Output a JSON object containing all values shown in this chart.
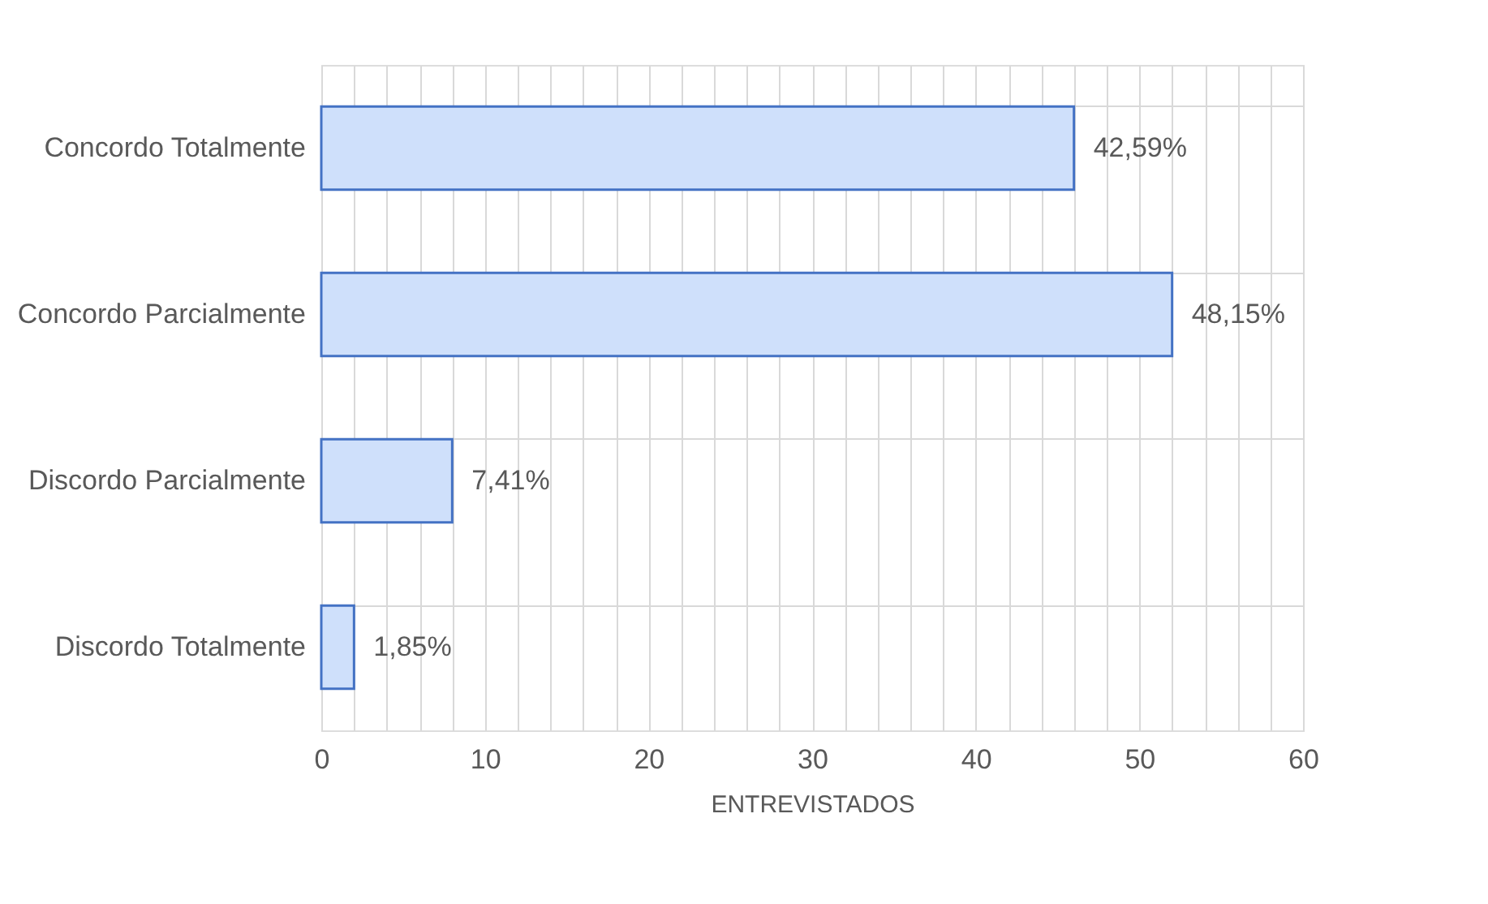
{
  "chart_data": {
    "type": "bar",
    "orientation": "horizontal",
    "xlabel": "ENTREVISTADOS",
    "categories": [
      "Concordo Totalmente",
      "Concordo Parcialmente",
      "Discordo Parcialmente",
      "Discordo Totalmente"
    ],
    "values": [
      46,
      52,
      8,
      2
    ],
    "annotations": [
      {
        "text": "42,59%",
        "x": 46,
        "y": "Concordo Totalmente"
      },
      {
        "text": "48,15%",
        "x": 52,
        "y": "Concordo Parcialmente"
      },
      {
        "text": "7,41%",
        "x": 8,
        "y": "Discordo Parcialmente"
      },
      {
        "text": "1,85%",
        "x": 2,
        "y": "Discordo Totalmente"
      }
    ],
    "color": "#cfe0fb",
    "xlim": [
      0,
      60
    ],
    "xticks": [
      0,
      {
        "value": 2,
        "label": null
      },
      {
        "value": 4,
        "label": null
      },
      {
        "value": 6,
        "label": null
      },
      {
        "value": 8,
        "label": null
      },
      10,
      {
        "value": 12,
        "label": null
      },
      {
        "value": 14,
        "label": null
      },
      {
        "value": 16,
        "label": null
      },
      {
        "value": 18,
        "label": null
      },
      20,
      {
        "value": 22,
        "label": null
      },
      {
        "value": 24,
        "label": null
      },
      {
        "value": 26,
        "label": null
      },
      {
        "value": 28,
        "label": null
      },
      30,
      {
        "value": 32,
        "label": null
      },
      {
        "value": 34,
        "label": null
      },
      {
        "value": 36,
        "label": null
      },
      {
        "value": 38,
        "label": null
      },
      40,
      {
        "value": 42,
        "label": null
      },
      {
        "value": 44,
        "label": null
      },
      {
        "value": 46,
        "label": null
      },
      {
        "value": 48,
        "label": null
      },
      50,
      {
        "value": 52,
        "label": null
      },
      {
        "value": 54,
        "label": null
      },
      {
        "value": 56,
        "label": null
      },
      {
        "value": 58,
        "label": null
      },
      60
    ],
    "grid": true
  }
}
